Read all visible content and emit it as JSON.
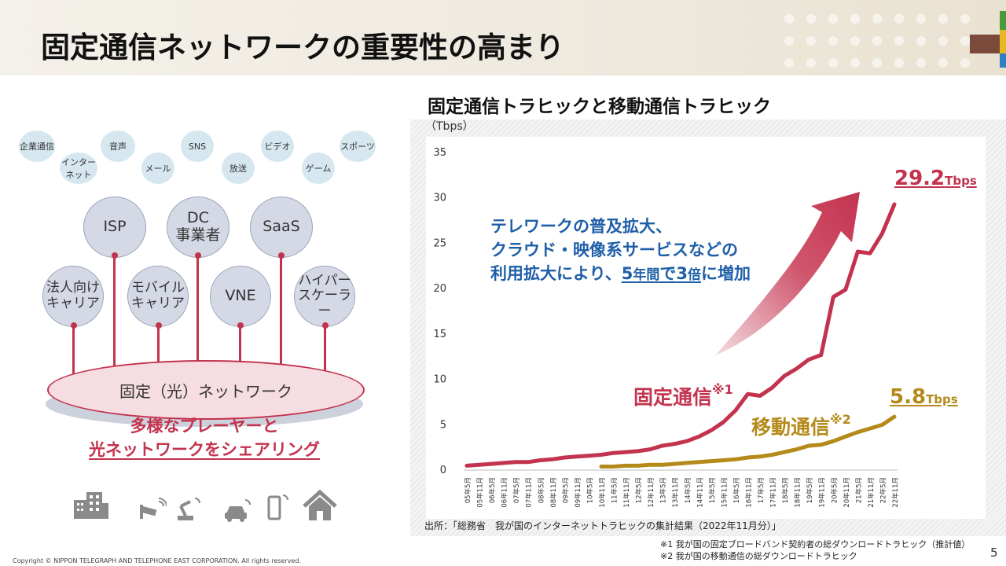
{
  "header": {
    "title": "固定通信ネットワークの重要性の高まり"
  },
  "diagram": {
    "services": [
      "企業通信",
      "音声",
      "SNS",
      "ビデオ",
      "スポーツ",
      "インターネット",
      "メール",
      "放送",
      "ゲーム"
    ],
    "top_players": [
      {
        "line1": "ISP",
        "line2": ""
      },
      {
        "line1": "DC",
        "line2": "事業者"
      },
      {
        "line1": "SaaS",
        "line2": ""
      }
    ],
    "mid_players": [
      {
        "line1": "法人向け",
        "line2": "キャリア"
      },
      {
        "line1": "モバイル",
        "line2": "キャリア"
      },
      {
        "line1": "VNE",
        "line2": ""
      },
      {
        "line1": "ハイパー",
        "line2": "スケーラー"
      }
    ],
    "network_label": "固定（光）ネットワーク",
    "share_line1": "多様なプレーヤーと",
    "share_line2": "光ネットワークをシェアリング",
    "device_icons": [
      "building-icon",
      "camera-icon",
      "robot-arm-icon",
      "car-icon",
      "smartphone-icon",
      "house-icon"
    ]
  },
  "chart_data": {
    "type": "line",
    "title": "固定通信トラヒックと移動通信トラヒック",
    "unit_label": "（Tbps）",
    "ylim": [
      0,
      35
    ],
    "yticks": [
      0,
      5,
      10,
      15,
      20,
      25,
      30,
      35
    ],
    "categories": [
      "05年5月",
      "05年11月",
      "06年5月",
      "06年11月",
      "07年5月",
      "07年11月",
      "08年5月",
      "08年11月",
      "09年5月",
      "09年11月",
      "10年5月",
      "10年11月",
      "11年5月",
      "11年11月",
      "12年5月",
      "12年11月",
      "13年5月",
      "13年11月",
      "14年5月",
      "14年11月",
      "15年5月",
      "15年11月",
      "16年5月",
      "16年11月",
      "17年5月",
      "17年11月",
      "18年5月",
      "18年11月",
      "19年5月",
      "19年11月",
      "20年5月",
      "20年11月",
      "21年5月",
      "21年11月",
      "22年5月",
      "22年11月"
    ],
    "series": [
      {
        "name": "固定通信",
        "note": "※1",
        "color": "#c3334e",
        "values": [
          0.4,
          0.5,
          0.6,
          0.7,
          0.8,
          0.8,
          1.0,
          1.1,
          1.3,
          1.4,
          1.5,
          1.6,
          1.8,
          1.9,
          2.0,
          2.2,
          2.6,
          2.8,
          3.1,
          3.6,
          4.3,
          5.2,
          6.5,
          8.3,
          8.1,
          9.0,
          10.3,
          11.1,
          12.1,
          12.6,
          19.0,
          19.8,
          24.0,
          23.8,
          26.0,
          29.2
        ]
      },
      {
        "name": "移動通信",
        "note": "※2",
        "color": "#b48a1a",
        "values": [
          null,
          null,
          null,
          null,
          null,
          null,
          null,
          null,
          null,
          null,
          null,
          0.3,
          0.3,
          0.4,
          0.4,
          0.5,
          0.5,
          0.6,
          0.7,
          0.8,
          0.9,
          1.0,
          1.1,
          1.3,
          1.4,
          1.6,
          1.9,
          2.2,
          2.6,
          2.7,
          3.1,
          3.6,
          4.1,
          4.5,
          4.9,
          5.8
        ]
      }
    ],
    "fixed_end_value": "29.2",
    "mobile_end_value": "5.8",
    "end_unit": "Tbps",
    "annotation": {
      "line1": "テレワークの普及拡大、",
      "line2": "クラウド・映像系サービスなどの",
      "line3_a": "利用拡大により、",
      "line3_b": "5",
      "line3_c": "年間",
      "line3_d": "で3",
      "line3_e": "倍",
      "line3_f": "に増加"
    },
    "source": "出所：「総務省　我が国のインターネットトラヒックの集計結果（2022年11月分）」"
  },
  "notes": {
    "note1": "※1  我が国の固定ブロードバンド契約者の総ダウンロードトラヒック（推計値）",
    "note2": "※2  我が国の移動通信の総ダウンロードトラヒック"
  },
  "footer": {
    "copyright": "Copyright © NIPPON TELEGRAPH AND TELEPHONE EAST CORPORATION. All rights reserved.",
    "page": "5"
  }
}
